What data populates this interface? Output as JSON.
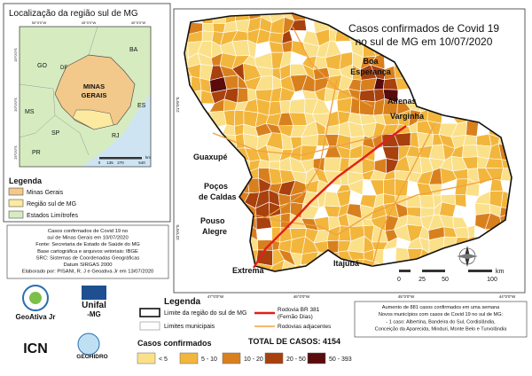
{
  "inset": {
    "title": "Localização da região sul de MG",
    "states": [
      "BA",
      "GO",
      "DF",
      "MS",
      "ES",
      "SP",
      "RJ",
      "PR"
    ],
    "mg_label": [
      "MINAS",
      "GERAIS"
    ],
    "scale": [
      "0",
      "135",
      "270",
      "540"
    ],
    "scale_unit": "km",
    "coords_top": [
      "50°0'0\"W",
      "45°0'0\"W",
      "40°0'0\"W"
    ],
    "coords_left": [
      "15°0'0\"S",
      "20°0'0\"S",
      "25°0'0\"S"
    ]
  },
  "inset_legend": {
    "title": "Legenda",
    "items": [
      {
        "label": "Minas Gerais",
        "color": "#f2c98a"
      },
      {
        "label": "Região sul de MG",
        "color": "#fbeaa0"
      },
      {
        "label": "Estados Limítrofes",
        "color": "#d6ecc0"
      }
    ]
  },
  "source": [
    "Casos confirmados de Covid 19 no",
    "sul de Minas Gerais em 10/07/2020",
    "Fonte: Secretaria de Estado de Saúde do MG",
    "Base cartográfica e arquivos vetoriais: IBGE",
    "SRC: Sistemas de Coordenadas Geográficas",
    "Datum SIRGAS 2000",
    "Elaborado por: PISANI, R. J e Geoativa Jr em 13/07/2020"
  ],
  "logos": [
    "GeoAtiva Jr",
    "Unifal",
    "-MG",
    "ICN",
    "GEOHIDRO"
  ],
  "map": {
    "title": [
      "Casos confirmados de Covid 19",
      "no sul de MG em 10/07/2020"
    ],
    "cities": [
      [
        "Boa",
        "Esperança"
      ],
      [
        "Alfenas"
      ],
      [
        "Varginha"
      ],
      [
        "Guaxupé"
      ],
      [
        "Poços",
        "de Caldas"
      ],
      [
        "Pouso",
        "Alegre"
      ],
      [
        "Extrema"
      ],
      [
        "Itajubá"
      ]
    ],
    "scale": [
      "0",
      "25",
      "50",
      "100"
    ],
    "scale_unit": "km",
    "coords_bottom": [
      "47°0'0\"W",
      "46°0'0\"W",
      "45°0'0\"W",
      "44°0'0\"W"
    ],
    "coords_left": [
      "21°0'0\"S",
      "22°0'0\"S"
    ]
  },
  "legend": {
    "title": "Legenda",
    "boundary": "Limite da região do sul de MG",
    "municipal": "Limites municipais",
    "highway": [
      "Rodovia BR 381",
      "(Fernão Dias)"
    ],
    "roads": "Rodovias adjacentes",
    "highway_color": "#e0201b",
    "roads_color": "#f0a040",
    "classes_title": "Casos confirmados",
    "classes": [
      {
        "label": "< 5",
        "color": "#fbe08a"
      },
      {
        "label": "5 - 10",
        "color": "#f3b63c"
      },
      {
        "label": "10 - 20",
        "color": "#d9801e"
      },
      {
        "label": "20 - 50",
        "color": "#a8410e"
      },
      {
        "label": "50 - 393",
        "color": "#5a0b0b"
      }
    ],
    "total": "TOTAL DE CASOS: 4154"
  },
  "note": [
    "Aumento de 881 casos confirmados em uma semana",
    "Novos municípios com casos de Covid 19 no sul de MG:",
    "- 1 caso: Albertina, Bandeira do Sul, Cordislândia,",
    "Conceição da Aparecida, Minduri, Monte Belo e Turvolândia"
  ]
}
